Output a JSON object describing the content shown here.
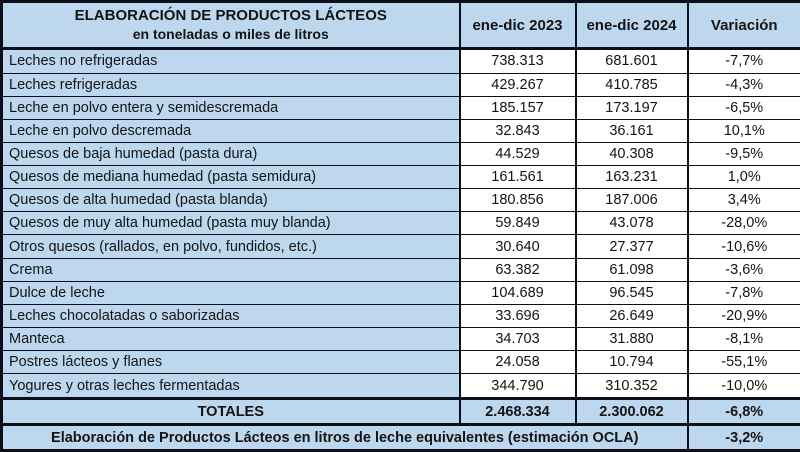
{
  "colors": {
    "cell_blue": "#BDD7EE",
    "cell_white": "#FFFFFF",
    "border": "#0b0f1a",
    "text": "#141414"
  },
  "chart_data": {
    "type": "table",
    "title": "ELABORACIÓN DE PRODUCTOS LÁCTEOS",
    "subtitle": "en toneladas o miles de litros",
    "columns": [
      "ene-dic 2023",
      "ene-dic 2024",
      "Variación"
    ],
    "rows": [
      {
        "product": "Leches no refrigeradas",
        "ene_dic_2023": "738.313",
        "ene_dic_2024": "681.601",
        "variacion": "-7,7%"
      },
      {
        "product": "Leches refrigeradas",
        "ene_dic_2023": "429.267",
        "ene_dic_2024": "410.785",
        "variacion": "-4,3%"
      },
      {
        "product": "Leche en polvo entera y semidescremada",
        "ene_dic_2023": "185.157",
        "ene_dic_2024": "173.197",
        "variacion": "-6,5%"
      },
      {
        "product": "Leche en polvo descremada",
        "ene_dic_2023": "32.843",
        "ene_dic_2024": "36.161",
        "variacion": "10,1%"
      },
      {
        "product": "Quesos de baja humedad (pasta dura)",
        "ene_dic_2023": "44.529",
        "ene_dic_2024": "40.308",
        "variacion": "-9,5%"
      },
      {
        "product": "Quesos de mediana humedad (pasta semidura)",
        "ene_dic_2023": "161.561",
        "ene_dic_2024": "163.231",
        "variacion": "1,0%"
      },
      {
        "product": "Quesos de alta humedad (pasta blanda)",
        "ene_dic_2023": "180.856",
        "ene_dic_2024": "187.006",
        "variacion": "3,4%"
      },
      {
        "product": "Quesos de muy alta humedad (pasta muy blanda)",
        "ene_dic_2023": "59.849",
        "ene_dic_2024": "43.078",
        "variacion": "-28,0%"
      },
      {
        "product": "Otros quesos (rallados, en polvo, fundidos, etc.)",
        "ene_dic_2023": "30.640",
        "ene_dic_2024": "27.377",
        "variacion": "-10,6%"
      },
      {
        "product": "Crema",
        "ene_dic_2023": "63.382",
        "ene_dic_2024": "61.098",
        "variacion": "-3,6%"
      },
      {
        "product": "Dulce de leche",
        "ene_dic_2023": "104.689",
        "ene_dic_2024": "96.545",
        "variacion": "-7,8%"
      },
      {
        "product": "Leches chocolatadas o saborizadas",
        "ene_dic_2023": "33.696",
        "ene_dic_2024": "26.649",
        "variacion": "-20,9%"
      },
      {
        "product": "Manteca",
        "ene_dic_2023": "34.703",
        "ene_dic_2024": "31.880",
        "variacion": "-8,1%"
      },
      {
        "product": "Postres lácteos y flanes",
        "ene_dic_2023": "24.058",
        "ene_dic_2024": "10.794",
        "variacion": "-55,1%"
      },
      {
        "product": "Yogures y otras leches fermentadas",
        "ene_dic_2023": "344.790",
        "ene_dic_2024": "310.352",
        "variacion": "-10,0%"
      }
    ],
    "totals": {
      "product": "TOTALES",
      "ene_dic_2023": "2.468.334",
      "ene_dic_2024": "2.300.062",
      "variacion": "-6,8%"
    },
    "footer": {
      "label": "Elaboración de Productos Lácteos en litros de leche equivalentes (estimación OCLA)",
      "variacion": "-3,2%"
    }
  }
}
